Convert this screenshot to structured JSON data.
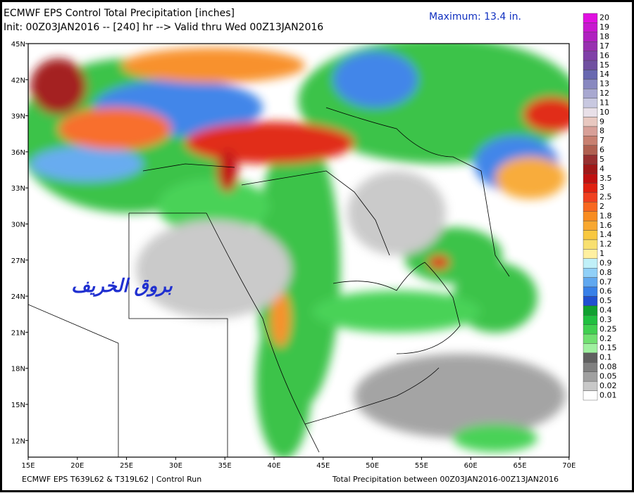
{
  "header": {
    "title": "ECMWF EPS Control Total Precipitation [inches]",
    "subtitle": "Init: 00Z03JAN2016 -- [240] hr --> Valid thru Wed 00Z13JAN2016",
    "maximum": "Maximum:   13.4 in."
  },
  "watermark": "بروق الخريف",
  "latitudes": [
    "45N",
    "42N",
    "39N",
    "36N",
    "33N",
    "30N",
    "27N",
    "24N",
    "21N",
    "18N",
    "15N",
    "12N"
  ],
  "longitudes": [
    "15E",
    "20E",
    "25E",
    "30E",
    "35E",
    "40E",
    "45E",
    "50E",
    "55E",
    "60E",
    "65E",
    "70E"
  ],
  "legend": {
    "levels": [
      {
        "label": "20",
        "color": "#e010e0"
      },
      {
        "label": "19",
        "color": "#c818d0"
      },
      {
        "label": "18",
        "color": "#b020c0"
      },
      {
        "label": "17",
        "color": "#9830b0"
      },
      {
        "label": "16",
        "color": "#8040a8"
      },
      {
        "label": "15",
        "color": "#7050a0"
      },
      {
        "label": "14",
        "color": "#6868b0"
      },
      {
        "label": "13",
        "color": "#8888c0"
      },
      {
        "label": "12",
        "color": "#a8a8d0"
      },
      {
        "label": "11",
        "color": "#c8c8e0"
      },
      {
        "label": "10",
        "color": "#e8e0e8"
      },
      {
        "label": "9",
        "color": "#e8c8c0"
      },
      {
        "label": "8",
        "color": "#d8a098"
      },
      {
        "label": "7",
        "color": "#c88070"
      },
      {
        "label": "6",
        "color": "#b06050"
      },
      {
        "label": "5",
        "color": "#983030"
      },
      {
        "label": "4",
        "color": "#a01818"
      },
      {
        "label": "3.5",
        "color": "#c01010"
      },
      {
        "label": "3",
        "color": "#e02010"
      },
      {
        "label": "2.5",
        "color": "#f04020"
      },
      {
        "label": "2",
        "color": "#f86820"
      },
      {
        "label": "1.8",
        "color": "#f88c20"
      },
      {
        "label": "1.6",
        "color": "#f8a830"
      },
      {
        "label": "1.4",
        "color": "#f8c840"
      },
      {
        "label": "1.2",
        "color": "#f8e070"
      },
      {
        "label": "1",
        "color": "#fff0a0"
      },
      {
        "label": "0.9",
        "color": "#c0f0f8"
      },
      {
        "label": "0.8",
        "color": "#90d0f8"
      },
      {
        "label": "0.7",
        "color": "#60a8f0"
      },
      {
        "label": "0.6",
        "color": "#3880e8"
      },
      {
        "label": "0.5",
        "color": "#2050d0"
      },
      {
        "label": "0.4",
        "color": "#10a030"
      },
      {
        "label": "0.3",
        "color": "#20c040"
      },
      {
        "label": "0.25",
        "color": "#40d050"
      },
      {
        "label": "0.2",
        "color": "#70e070"
      },
      {
        "label": "0.15",
        "color": "#a0f0a0"
      },
      {
        "label": "0.1",
        "color": "#606060"
      },
      {
        "label": "0.08",
        "color": "#808080"
      },
      {
        "label": "0.05",
        "color": "#a0a0a0"
      },
      {
        "label": "0.02",
        "color": "#c8c8c8"
      },
      {
        "label": "0.01",
        "color": "#ffffff"
      }
    ]
  },
  "footer": {
    "left": "ECMWF EPS T639L62 & T319L62 | Control Run",
    "right": "Total Precipitation between 00Z03JAN2016-00Z13JAN2016"
  }
}
